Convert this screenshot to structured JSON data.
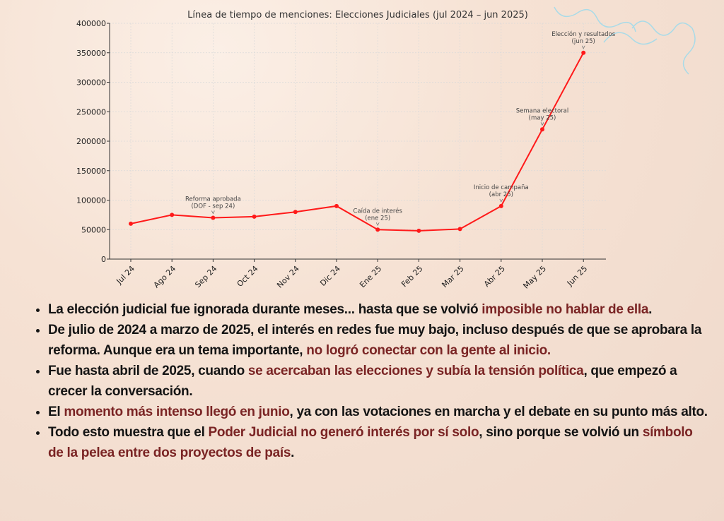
{
  "chart_data": {
    "type": "line",
    "title": "Línea de tiempo de menciones: Elecciones Judiciales (jul 2024 – jun 2025)",
    "categories": [
      "Jul 24",
      "Ago 24",
      "Sep 24",
      "Oct 24",
      "Nov 24",
      "Dic 24",
      "Ene 25",
      "Feb 25",
      "Mar 25",
      "Abr 25",
      "May 25",
      "Jun 25"
    ],
    "series": [
      {
        "values": [
          60000,
          75000,
          70000,
          72000,
          80000,
          90000,
          50000,
          48000,
          51000,
          90000,
          220000,
          350000
        ],
        "color": "#ff1a1a"
      }
    ],
    "ylim": [
      0,
      400000
    ],
    "yticks": [
      0,
      50000,
      100000,
      150000,
      200000,
      250000,
      300000,
      350000,
      400000
    ],
    "grid": true,
    "annotations": [
      {
        "category": "Sep 24",
        "lines": [
          "Reforma aprobada",
          "(DOF - sep 24)"
        ]
      },
      {
        "category": "Ene 25",
        "lines": [
          "Caída de interés",
          "(ene 25)"
        ]
      },
      {
        "category": "Abr 25",
        "lines": [
          "Inicio de campaña",
          "(abr 25)"
        ]
      },
      {
        "category": "May 25",
        "lines": [
          "Semana electoral",
          "(may 25)"
        ]
      },
      {
        "category": "Jun 25",
        "lines": [
          "Elección y resultados",
          "(jun 25)"
        ]
      }
    ]
  },
  "colors": {
    "highlight": "#7a2424",
    "text": "#141414"
  },
  "bullets": [
    [
      {
        "t": "La elección judicial fue ignorada durante meses... hasta que se volvió "
      },
      {
        "t": "imposible no hablar de ella",
        "hl": true
      },
      {
        "t": "."
      }
    ],
    [
      {
        "t": "De julio de 2024 a marzo de 2025, el interés en redes fue muy bajo, incluso después de que se aprobara la reforma. Aunque era un tema importante, "
      },
      {
        "t": "no logró conectar con la gente al inicio.",
        "hl": true
      }
    ],
    [
      {
        "t": "Fue hasta abril de 2025, cuando "
      },
      {
        "t": "se acercaban las elecciones y subía la tensión política",
        "hl": true
      },
      {
        "t": ", que empezó a crecer la conversación."
      }
    ],
    [
      {
        "t": "El "
      },
      {
        "t": "momento más intenso llegó en junio",
        "hl": true
      },
      {
        "t": ", ya con las votaciones en marcha y el debate en su punto más alto."
      }
    ],
    [
      {
        "t": "Todo esto muestra que el "
      },
      {
        "t": "Poder Judicial no generó interés por sí solo",
        "hl": true
      },
      {
        "t": ", sino porque se volvió un "
      },
      {
        "t": "símbolo de la pelea entre dos proyectos de país",
        "hl": true
      },
      {
        "t": "."
      }
    ]
  ]
}
